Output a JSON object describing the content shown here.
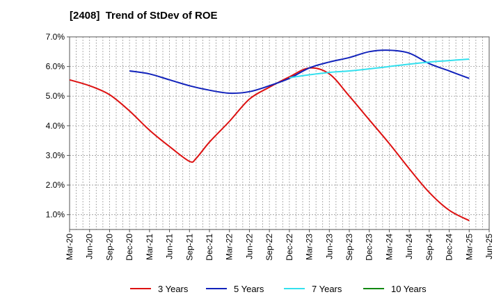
{
  "title": "[2408]  Trend of StDev of ROE",
  "chart_data": {
    "type": "line",
    "title": "[2408]  Trend of StDev of ROE",
    "xlabel": "",
    "ylabel": "",
    "ylim": [
      0.5,
      7.0
    ],
    "y_ticks": [
      "1.0%",
      "2.0%",
      "3.0%",
      "4.0%",
      "5.0%",
      "6.0%",
      "7.0%"
    ],
    "y_tick_values": [
      1,
      2,
      3,
      4,
      5,
      6,
      7
    ],
    "x_ticks": [
      "Mar-20",
      "Jun-20",
      "Sep-20",
      "Dec-20",
      "Mar-21",
      "Jun-21",
      "Sep-21",
      "Dec-21",
      "Mar-22",
      "Jun-22",
      "Sep-22",
      "Dec-22",
      "Mar-23",
      "Jun-23",
      "Sep-23",
      "Dec-23",
      "Mar-24",
      "Jun-24",
      "Sep-24",
      "Dec-24",
      "Mar-25",
      "Jun-25"
    ],
    "grid": true,
    "legend_position": "bottom",
    "series": [
      {
        "name": "3 Years",
        "color": "#dd1111",
        "x": [
          "Mar-20",
          "Jun-20",
          "Sep-20",
          "Dec-20",
          "Mar-21",
          "Jun-21",
          "Sep-21",
          "Oct-21",
          "Dec-21",
          "Mar-22",
          "Jun-22",
          "Sep-22",
          "Dec-22",
          "Mar-23",
          "Jun-23",
          "Sep-23",
          "Dec-23",
          "Mar-24",
          "Jun-24",
          "Sep-24",
          "Dec-24",
          "Mar-25"
        ],
        "values": [
          5.55,
          5.35,
          5.05,
          4.5,
          3.85,
          3.3,
          2.8,
          2.9,
          3.45,
          4.15,
          4.9,
          5.3,
          5.65,
          5.95,
          5.75,
          5.0,
          4.2,
          3.4,
          2.55,
          1.75,
          1.15,
          0.8
        ]
      },
      {
        "name": "5 Years",
        "color": "#1122bb",
        "x": [
          "Dec-20",
          "Mar-21",
          "Jun-21",
          "Sep-21",
          "Dec-21",
          "Mar-22",
          "Jun-22",
          "Sep-22",
          "Dec-22",
          "Mar-23",
          "Jun-23",
          "Sep-23",
          "Dec-23",
          "Mar-24",
          "Jun-24",
          "Sep-24",
          "Dec-24",
          "Mar-25"
        ],
        "values": [
          5.85,
          5.75,
          5.55,
          5.35,
          5.2,
          5.1,
          5.15,
          5.35,
          5.6,
          5.95,
          6.15,
          6.3,
          6.5,
          6.55,
          6.45,
          6.1,
          5.85,
          5.6
        ]
      },
      {
        "name": "7 Years",
        "color": "#33e0ee",
        "x": [
          "Dec-22",
          "Mar-23",
          "Jun-23",
          "Sep-23",
          "Dec-23",
          "Mar-24",
          "Jun-24",
          "Sep-24",
          "Dec-24",
          "Mar-25"
        ],
        "values": [
          5.62,
          5.72,
          5.8,
          5.85,
          5.92,
          6.0,
          6.08,
          6.15,
          6.2,
          6.25
        ]
      },
      {
        "name": "10 Years",
        "color": "#118811",
        "x": [],
        "values": []
      }
    ]
  }
}
